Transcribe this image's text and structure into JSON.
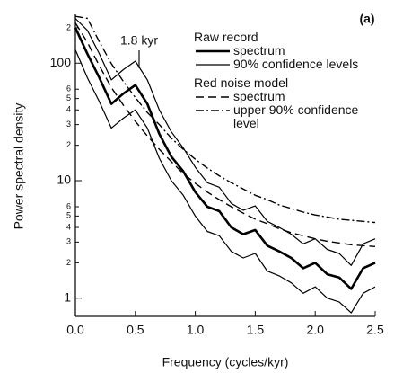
{
  "chart_data": {
    "type": "line",
    "panel_label": "(a)",
    "annotation": "1.8 kyr",
    "x_label": "Frequency (cycles/kyr)",
    "y_label": "Power spectral density",
    "y_scale": "log",
    "xlim": [
      0,
      2.5
    ],
    "ylim": [
      0.7,
      260
    ],
    "xticks": [
      {
        "value": 0,
        "label": "0.0"
      },
      0.5,
      {
        "value": 1,
        "label": "1.0"
      },
      1.5,
      {
        "value": 2,
        "label": "2.0"
      },
      2.5
    ],
    "yticks": [
      1,
      2,
      3,
      4,
      5,
      6,
      10,
      {
        "value": 20,
        "label": "2"
      },
      {
        "value": 30,
        "label": "3"
      },
      {
        "value": 40,
        "label": "4"
      },
      {
        "value": 50,
        "label": "5"
      },
      {
        "value": 60,
        "label": "6"
      },
      100,
      {
        "value": 200,
        "label": "2"
      }
    ],
    "legend_titles": [
      "Raw record",
      "Red noise model"
    ],
    "x": [
      0,
      0.1,
      0.2,
      0.3,
      0.4,
      0.5,
      0.6,
      0.7,
      0.8,
      0.9,
      1.0,
      1.1,
      1.2,
      1.3,
      1.4,
      1.5,
      1.6,
      1.7,
      1.8,
      1.9,
      2.0,
      2.1,
      2.2,
      2.3,
      2.4,
      2.5
    ],
    "series": [
      {
        "name": "spectrum",
        "color": "#000000",
        "style": "thick",
        "values": [
          200,
          120,
          75,
          45,
          55,
          65,
          45,
          25,
          16,
          12,
          8,
          6,
          5.5,
          4,
          3.5,
          3.8,
          2.8,
          2.5,
          2.2,
          1.8,
          2.0,
          1.6,
          1.5,
          1.2,
          1.8,
          2.0
        ]
      },
      {
        "name": "90% confidence levels",
        "color": "#000000",
        "style": "thin",
        "values": [
          240,
          190,
          120,
          72,
          88,
          104,
          72,
          40,
          26,
          19,
          13,
          9.6,
          8.8,
          6.4,
          5.6,
          6.1,
          4.5,
          4,
          3.5,
          2.9,
          3.2,
          2.6,
          2.4,
          1.9,
          2.9,
          3.2
        ],
        "lower": [
          130,
          75,
          47,
          28,
          34,
          40,
          28,
          15.5,
          10,
          7.5,
          5,
          3.7,
          3.4,
          2.5,
          2.2,
          2.4,
          1.7,
          1.55,
          1.35,
          1.1,
          1.25,
          1,
          0.93,
          0.75,
          1.1,
          1.25
        ]
      },
      {
        "name": "spectrum",
        "color": "#000000",
        "style": "dashed",
        "values": [
          220,
          150,
          95,
          62,
          44,
          32,
          24,
          18.5,
          14.5,
          11.5,
          9.5,
          8,
          6.9,
          6,
          5.3,
          4.7,
          4.3,
          3.9,
          3.6,
          3.4,
          3.2,
          3.05,
          2.95,
          2.85,
          2.8,
          2.75
        ]
      },
      {
        "name": "upper 90% confidence level",
        "color": "#000000",
        "style": "dashdot",
        "values": [
          250,
          240,
          152,
          99,
          70,
          51,
          38,
          30,
          23,
          18.5,
          15.2,
          12.8,
          11,
          9.6,
          8.5,
          7.5,
          6.9,
          6.2,
          5.8,
          5.4,
          5.1,
          4.9,
          4.7,
          4.6,
          4.5,
          4.4
        ]
      }
    ]
  }
}
